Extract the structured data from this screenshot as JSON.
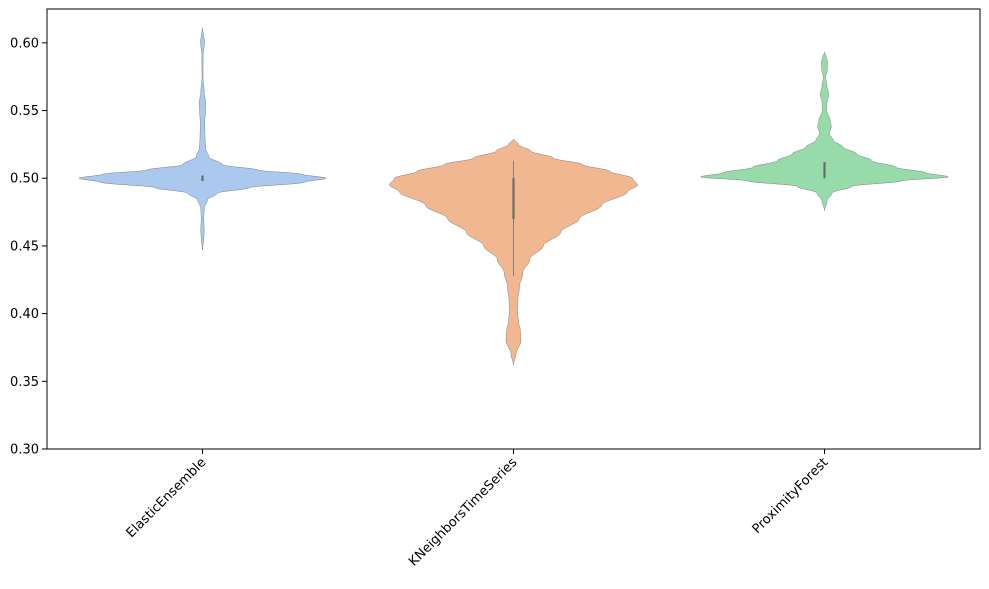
{
  "chart_data": {
    "type": "violin",
    "title": "",
    "xlabel": "",
    "ylabel": "",
    "ylim": [
      0.3,
      0.625
    ],
    "y_ticks": [
      0.3,
      0.35,
      0.4,
      0.45,
      0.5,
      0.55,
      0.6
    ],
    "y_tick_labels": [
      "0.30",
      "0.35",
      "0.40",
      "0.45",
      "0.50",
      "0.55",
      "0.60"
    ],
    "grid": false,
    "legend": "none",
    "categories": [
      "ElasticEnsemble",
      "KNeighborsTimeSeries",
      "ProximityForest"
    ],
    "series": [
      {
        "category": "ElasticEnsemble",
        "color": "#abc9ee",
        "range": [
          0.447,
          0.611
        ],
        "quartiles": [
          0.498,
          0.5,
          0.502
        ],
        "density_profile": [
          [
            0.447,
            0.0
          ],
          [
            0.455,
            0.01
          ],
          [
            0.462,
            0.014
          ],
          [
            0.47,
            0.01
          ],
          [
            0.478,
            0.014
          ],
          [
            0.484,
            0.04
          ],
          [
            0.489,
            0.12
          ],
          [
            0.493,
            0.38
          ],
          [
            0.497,
            0.82
          ],
          [
            0.5,
            1.0
          ],
          [
            0.503,
            0.8
          ],
          [
            0.506,
            0.45
          ],
          [
            0.51,
            0.16
          ],
          [
            0.516,
            0.05
          ],
          [
            0.522,
            0.025
          ],
          [
            0.53,
            0.02
          ],
          [
            0.54,
            0.017
          ],
          [
            0.55,
            0.024
          ],
          [
            0.556,
            0.026
          ],
          [
            0.563,
            0.014
          ],
          [
            0.575,
            0.004
          ],
          [
            0.59,
            0.005
          ],
          [
            0.601,
            0.016
          ],
          [
            0.606,
            0.008
          ],
          [
            0.611,
            0.0
          ]
        ]
      },
      {
        "category": "KNeighborsTimeSeries",
        "color": "#f1b790",
        "range": [
          0.362,
          0.529
        ],
        "quartiles": [
          0.47,
          0.491,
          0.5
        ],
        "whisker": [
          0.428,
          0.513
        ],
        "density_profile": [
          [
            0.362,
            0.0
          ],
          [
            0.37,
            0.02
          ],
          [
            0.38,
            0.06
          ],
          [
            0.388,
            0.055
          ],
          [
            0.394,
            0.04
          ],
          [
            0.402,
            0.032
          ],
          [
            0.41,
            0.036
          ],
          [
            0.42,
            0.048
          ],
          [
            0.43,
            0.075
          ],
          [
            0.44,
            0.13
          ],
          [
            0.45,
            0.24
          ],
          [
            0.46,
            0.38
          ],
          [
            0.47,
            0.53
          ],
          [
            0.48,
            0.71
          ],
          [
            0.49,
            0.92
          ],
          [
            0.495,
            1.0
          ],
          [
            0.5,
            0.96
          ],
          [
            0.505,
            0.78
          ],
          [
            0.51,
            0.56
          ],
          [
            0.515,
            0.32
          ],
          [
            0.52,
            0.14
          ],
          [
            0.525,
            0.04
          ],
          [
            0.529,
            0.0
          ]
        ]
      },
      {
        "category": "ProximityForest",
        "color": "#98dbaa",
        "range": [
          0.476,
          0.593
        ],
        "quartiles": [
          0.5,
          0.503,
          0.512
        ],
        "density_profile": [
          [
            0.476,
            0.0
          ],
          [
            0.483,
            0.02
          ],
          [
            0.489,
            0.06
          ],
          [
            0.494,
            0.22
          ],
          [
            0.498,
            0.62
          ],
          [
            0.501,
            1.0
          ],
          [
            0.504,
            0.82
          ],
          [
            0.508,
            0.58
          ],
          [
            0.513,
            0.38
          ],
          [
            0.518,
            0.26
          ],
          [
            0.523,
            0.15
          ],
          [
            0.528,
            0.07
          ],
          [
            0.533,
            0.04
          ],
          [
            0.538,
            0.055
          ],
          [
            0.543,
            0.045
          ],
          [
            0.55,
            0.018
          ],
          [
            0.556,
            0.02
          ],
          [
            0.562,
            0.034
          ],
          [
            0.568,
            0.02
          ],
          [
            0.575,
            0.01
          ],
          [
            0.58,
            0.022
          ],
          [
            0.586,
            0.025
          ],
          [
            0.59,
            0.012
          ],
          [
            0.593,
            0.0
          ]
        ]
      }
    ]
  }
}
